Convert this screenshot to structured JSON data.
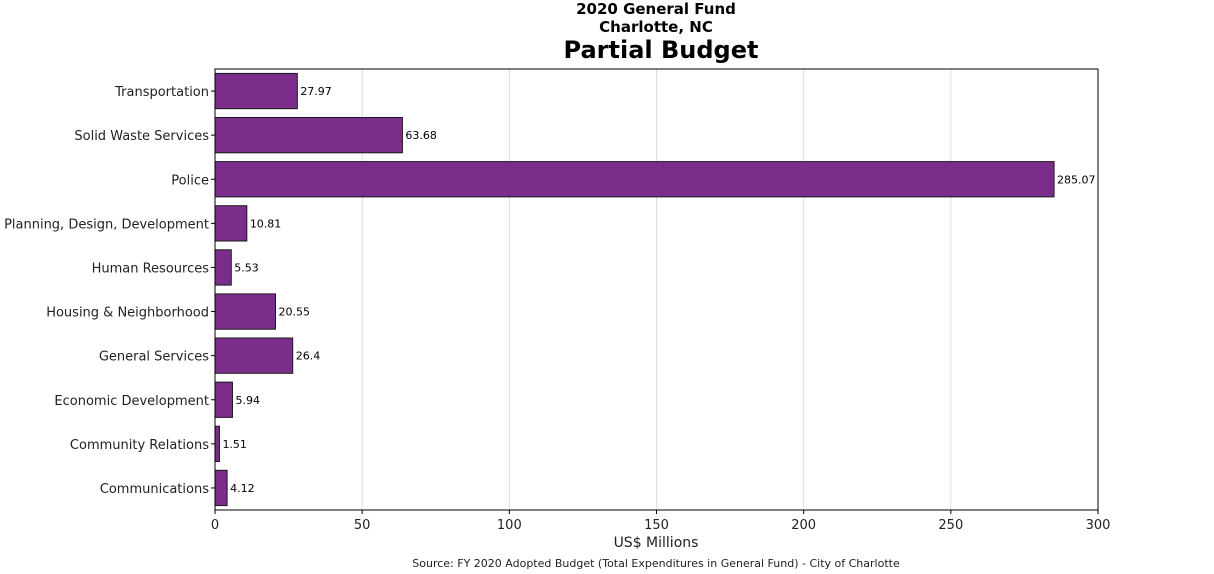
{
  "chart_data": {
    "type": "bar",
    "orientation": "horizontal",
    "title_lines": [
      "2020 General Fund",
      "Charlotte, NC"
    ],
    "title": "Partial Budget",
    "xlabel": "US$ Millions",
    "source": "Source: FY 2020 Adopted Budget (Total Expenditures in General Fund) - City of Charlotte",
    "categories": [
      "Transportation",
      "Solid Waste Services",
      "Police",
      "Planning, Design, Development",
      "Human Resources",
      "Housing & Neighborhood",
      "General Services",
      "Economic Development",
      "Community Relations",
      "Communications"
    ],
    "values": [
      27.97,
      63.68,
      285.07,
      10.81,
      5.53,
      20.55,
      26.4,
      5.94,
      1.51,
      4.12
    ],
    "value_labels": [
      "27.97",
      "63.68",
      "285.07",
      "10.81",
      "5.53",
      "20.55",
      "26.4",
      "5.94",
      "1.51",
      "4.12"
    ],
    "xlim": [
      0,
      300
    ],
    "xticks": [
      0,
      50,
      100,
      150,
      200,
      250,
      300
    ],
    "grid": "vertical",
    "bar_color": "#7b2d8b",
    "bar_edge_color": "#1a1a1a"
  }
}
